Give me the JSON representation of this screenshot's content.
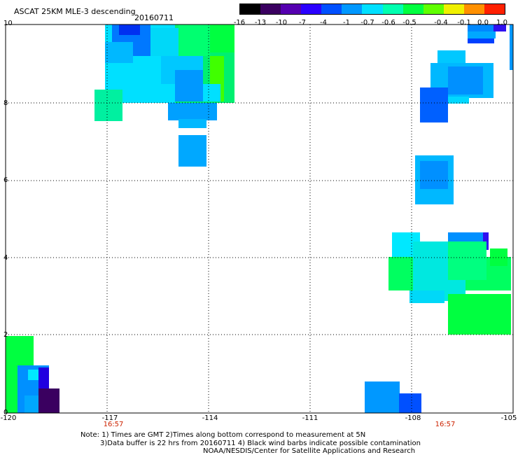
{
  "header": {
    "title": "ASCAT 25KM MLE-3 descending",
    "date": "20160711"
  },
  "colorbar": {
    "labels": [
      "-16",
      "-13",
      "-10",
      "-7",
      "-4",
      "-1",
      "-0.7",
      "-0.6",
      "-0.5",
      "-0.4",
      "-0.1",
      "0.0",
      "1.0"
    ],
    "colors": [
      "#000000",
      "#3a0060",
      "#5500b0",
      "#2a00ff",
      "#0050ff",
      "#0098ff",
      "#00e0ff",
      "#00ffb0",
      "#00ff40",
      "#60ff00",
      "#f0f000",
      "#ff9000",
      "#ff2000"
    ]
  },
  "axes": {
    "y_ticks": [
      "0",
      "2",
      "4",
      "6",
      "8",
      "10"
    ],
    "x_ticks": [
      "-120",
      "-117",
      "-114",
      "-111",
      "-108",
      "-105"
    ],
    "times": [
      "16:57",
      "16:57"
    ]
  },
  "notes": {
    "line1": "Note: 1) Times are GMT 2)Times along bottom correspond to measurement at 5N",
    "line2": "3)Data buffer is 22 hrs from 20160711 4) Black wind barbs indicate possible contamination",
    "line3": "NOAA/NESDIS/Center for Satellite Applications and Research"
  }
}
